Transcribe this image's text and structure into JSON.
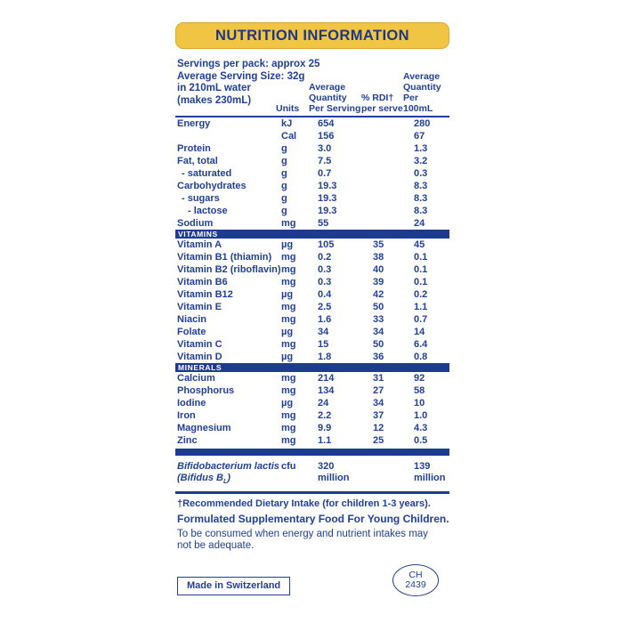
{
  "header": {
    "title": "NUTRITION INFORMATION"
  },
  "serving_info": {
    "lines": "Servings per pack: approx 25\nAverage Serving Size: 32g\nin 210mL water\n(makes 230mL)"
  },
  "columns": {
    "units": "Units",
    "per_serving": "Average\nQuantity\nPer Serving",
    "rdi": "% RDI†\nper serve",
    "per_100ml": "Average\nQuantity\nPer 100mL"
  },
  "table": {
    "macro_rows": [
      {
        "label": "Energy",
        "indent": 0,
        "unit": "kJ",
        "per_serving": "654",
        "rdi": "",
        "per_100ml": "280"
      },
      {
        "label": "",
        "indent": 0,
        "unit": "Cal",
        "per_serving": "156",
        "rdi": "",
        "per_100ml": "67"
      },
      {
        "label": "Protein",
        "indent": 0,
        "unit": "g",
        "per_serving": "3.0",
        "rdi": "",
        "per_100ml": "1.3"
      },
      {
        "label": "Fat, total",
        "indent": 0,
        "unit": "g",
        "per_serving": "7.5",
        "rdi": "",
        "per_100ml": "3.2"
      },
      {
        "label": "- saturated",
        "indent": 1,
        "unit": "g",
        "per_serving": "0.7",
        "rdi": "",
        "per_100ml": "0.3"
      },
      {
        "label": "Carbohydrates",
        "indent": 0,
        "unit": "g",
        "per_serving": "19.3",
        "rdi": "",
        "per_100ml": "8.3"
      },
      {
        "label": "- sugars",
        "indent": 1,
        "unit": "g",
        "per_serving": "19.3",
        "rdi": "",
        "per_100ml": "8.3"
      },
      {
        "label": "- lactose",
        "indent": 2,
        "unit": "g",
        "per_serving": "19.3",
        "rdi": "",
        "per_100ml": "8.3"
      },
      {
        "label": "Sodium",
        "indent": 0,
        "unit": "mg",
        "per_serving": "55",
        "rdi": "",
        "per_100ml": "24"
      }
    ],
    "vitamins_header": "VITAMINS",
    "vitamin_rows": [
      {
        "label": "Vitamin A",
        "indent": 0,
        "unit": "µg",
        "per_serving": "105",
        "rdi": "35",
        "per_100ml": "45"
      },
      {
        "label": "Vitamin B1 (thiamin)",
        "indent": 0,
        "unit": "mg",
        "per_serving": "0.2",
        "rdi": "38",
        "per_100ml": "0.1"
      },
      {
        "label": "Vitamin B2 (riboflavin)",
        "indent": 0,
        "unit": "mg",
        "per_serving": "0.3",
        "rdi": "40",
        "per_100ml": "0.1"
      },
      {
        "label": "Vitamin B6",
        "indent": 0,
        "unit": "mg",
        "per_serving": "0.3",
        "rdi": "39",
        "per_100ml": "0.1"
      },
      {
        "label": "Vitamin B12",
        "indent": 0,
        "unit": "µg",
        "per_serving": "0.4",
        "rdi": "42",
        "per_100ml": "0.2"
      },
      {
        "label": "Vitamin E",
        "indent": 0,
        "unit": "mg",
        "per_serving": "2.5",
        "rdi": "50",
        "per_100ml": "1.1"
      },
      {
        "label": "Niacin",
        "indent": 0,
        "unit": "mg",
        "per_serving": "1.6",
        "rdi": "33",
        "per_100ml": "0.7"
      },
      {
        "label": "Folate",
        "indent": 0,
        "unit": "µg",
        "per_serving": "34",
        "rdi": "34",
        "per_100ml": "14"
      },
      {
        "label": "Vitamin C",
        "indent": 0,
        "unit": "mg",
        "per_serving": "15",
        "rdi": "50",
        "per_100ml": "6.4"
      },
      {
        "label": "Vitamin D",
        "indent": 0,
        "unit": "µg",
        "per_serving": "1.8",
        "rdi": "36",
        "per_100ml": "0.8"
      }
    ],
    "minerals_header": "MINERALS",
    "mineral_rows": [
      {
        "label": "Calcium",
        "indent": 0,
        "unit": "mg",
        "per_serving": "214",
        "rdi": "31",
        "per_100ml": "92"
      },
      {
        "label": "Phosphorus",
        "indent": 0,
        "unit": "mg",
        "per_serving": "134",
        "rdi": "27",
        "per_100ml": "58"
      },
      {
        "label": "Iodine",
        "indent": 0,
        "unit": "µg",
        "per_serving": "24",
        "rdi": "34",
        "per_100ml": "10"
      },
      {
        "label": "Iron",
        "indent": 0,
        "unit": "mg",
        "per_serving": "2.2",
        "rdi": "37",
        "per_100ml": "1.0"
      },
      {
        "label": "Magnesium",
        "indent": 0,
        "unit": "mg",
        "per_serving": "9.9",
        "rdi": "12",
        "per_100ml": "4.3"
      },
      {
        "label": "Zinc",
        "indent": 0,
        "unit": "mg",
        "per_serving": "1.1",
        "rdi": "25",
        "per_100ml": "0.5"
      }
    ],
    "probiotic": {
      "name_line1": "Bifidobacterium lactis",
      "name_line2_prefix": "(Bifidus B",
      "name_line2_sub": "L",
      "name_line2_suffix": ")",
      "unit": "cfu",
      "per_serving": "320\nmillion",
      "rdi": "",
      "per_100ml": "139\nmillion"
    }
  },
  "footnotes": {
    "rdi_note": "†Recommended Dietary Intake (for children 1-3 years).",
    "formulated": "Formulated Supplementary Food For Young Children.",
    "consumption": "To be consumed when energy and nutrient intakes may not be adequate."
  },
  "footer": {
    "made_in": "Made in Switzerland",
    "approval_line1": "CH",
    "approval_line2": "2439"
  },
  "colors": {
    "text_blue": "#21409a",
    "band_navy": "#1e3c8f",
    "header_yellow": "#f0c544",
    "header_yellow_edge": "#d9a930",
    "band_text": "#ffffff"
  }
}
